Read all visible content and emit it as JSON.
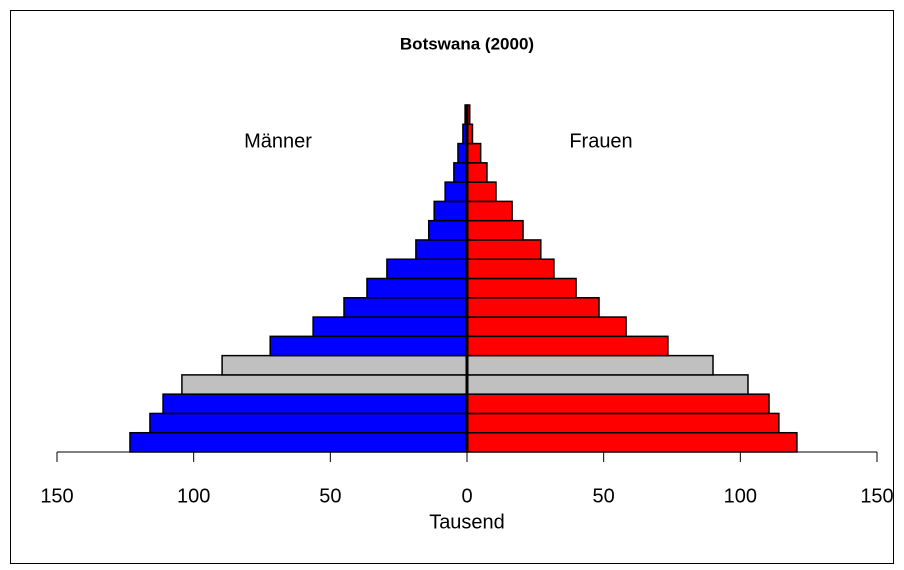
{
  "chart_data": {
    "type": "pyramid",
    "title": "Botswana (2000)",
    "xlabel": "Tausend",
    "categories": [
      null,
      null,
      null,
      null,
      null,
      null,
      null,
      null,
      null,
      null,
      null,
      null,
      null,
      null,
      null,
      null,
      null,
      null
    ],
    "series": [
      {
        "name": "Männer",
        "side": "left",
        "colors": [
          "#0000ff",
          "#0000ff",
          "#0000ff",
          "#c0c0c0",
          "#c0c0c0",
          "#0000ff",
          "#0000ff",
          "#0000ff",
          "#0000ff",
          "#0000ff",
          "#0000ff",
          "#0000ff",
          "#0000ff",
          "#0000ff",
          "#0000ff",
          "#0000ff",
          "#0000ff",
          "#0000ff"
        ],
        "values": [
          123.3,
          116,
          111.2,
          104.3,
          89.6,
          72,
          56.3,
          45,
          36.6,
          29.3,
          18.7,
          14,
          12,
          8,
          4.8,
          3.3,
          1.5,
          0.7
        ]
      },
      {
        "name": "Frauen",
        "side": "right",
        "colors": [
          "#ff0000",
          "#ff0000",
          "#ff0000",
          "#c0c0c0",
          "#c0c0c0",
          "#ff0000",
          "#ff0000",
          "#ff0000",
          "#ff0000",
          "#ff0000",
          "#ff0000",
          "#ff0000",
          "#ff0000",
          "#ff0000",
          "#ff0000",
          "#ff0000",
          "#ff0000",
          "#ff0000"
        ],
        "values": [
          120.7,
          114.1,
          110.5,
          102.8,
          90,
          73.5,
          58.2,
          48.3,
          39.9,
          31.8,
          27,
          20.5,
          16.5,
          10.6,
          7.3,
          5,
          2,
          1
        ]
      }
    ],
    "xlim": [
      -150,
      150
    ],
    "xticks": [
      {
        "value": -150,
        "label": "150"
      },
      {
        "value": -100,
        "label": "100"
      },
      {
        "value": -50,
        "label": "50"
      },
      0,
      50,
      100,
      150
    ]
  }
}
